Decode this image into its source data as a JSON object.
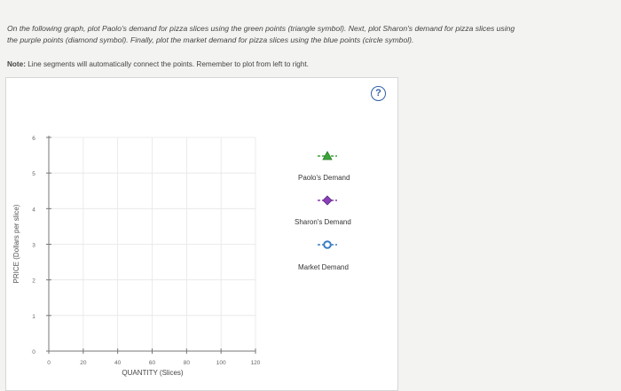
{
  "instructions": {
    "line1": "On the following graph, plot Paolo's demand for pizza slices using the green points (triangle symbol). Next, plot Sharon's demand for pizza slices using",
    "line2": "the purple points (diamond symbol). Finally, plot the market demand for pizza slices using the blue points (circle symbol).",
    "note_label": "Note:",
    "note_text": "Line segments will automatically connect the points. Remember to plot from left to right."
  },
  "help": {
    "label": "?"
  },
  "graph": {
    "y_axis_label": "PRICE (Dollars per slice)",
    "x_axis_label": "QUANTITY (Slices)",
    "y_ticks": [
      "0",
      "1",
      "2",
      "3",
      "4",
      "5",
      "6"
    ],
    "x_ticks": [
      "0",
      "20",
      "40",
      "60",
      "80",
      "100",
      "120"
    ]
  },
  "legend": {
    "items": [
      {
        "label": "Paolo's Demand",
        "symbol": "triangle",
        "color": "#3aa63a"
      },
      {
        "label": "Sharon's Demand",
        "symbol": "diamond",
        "color": "#8a3fb7"
      },
      {
        "label": "Market Demand",
        "symbol": "circle",
        "color": "#3a7cc4"
      }
    ]
  }
}
